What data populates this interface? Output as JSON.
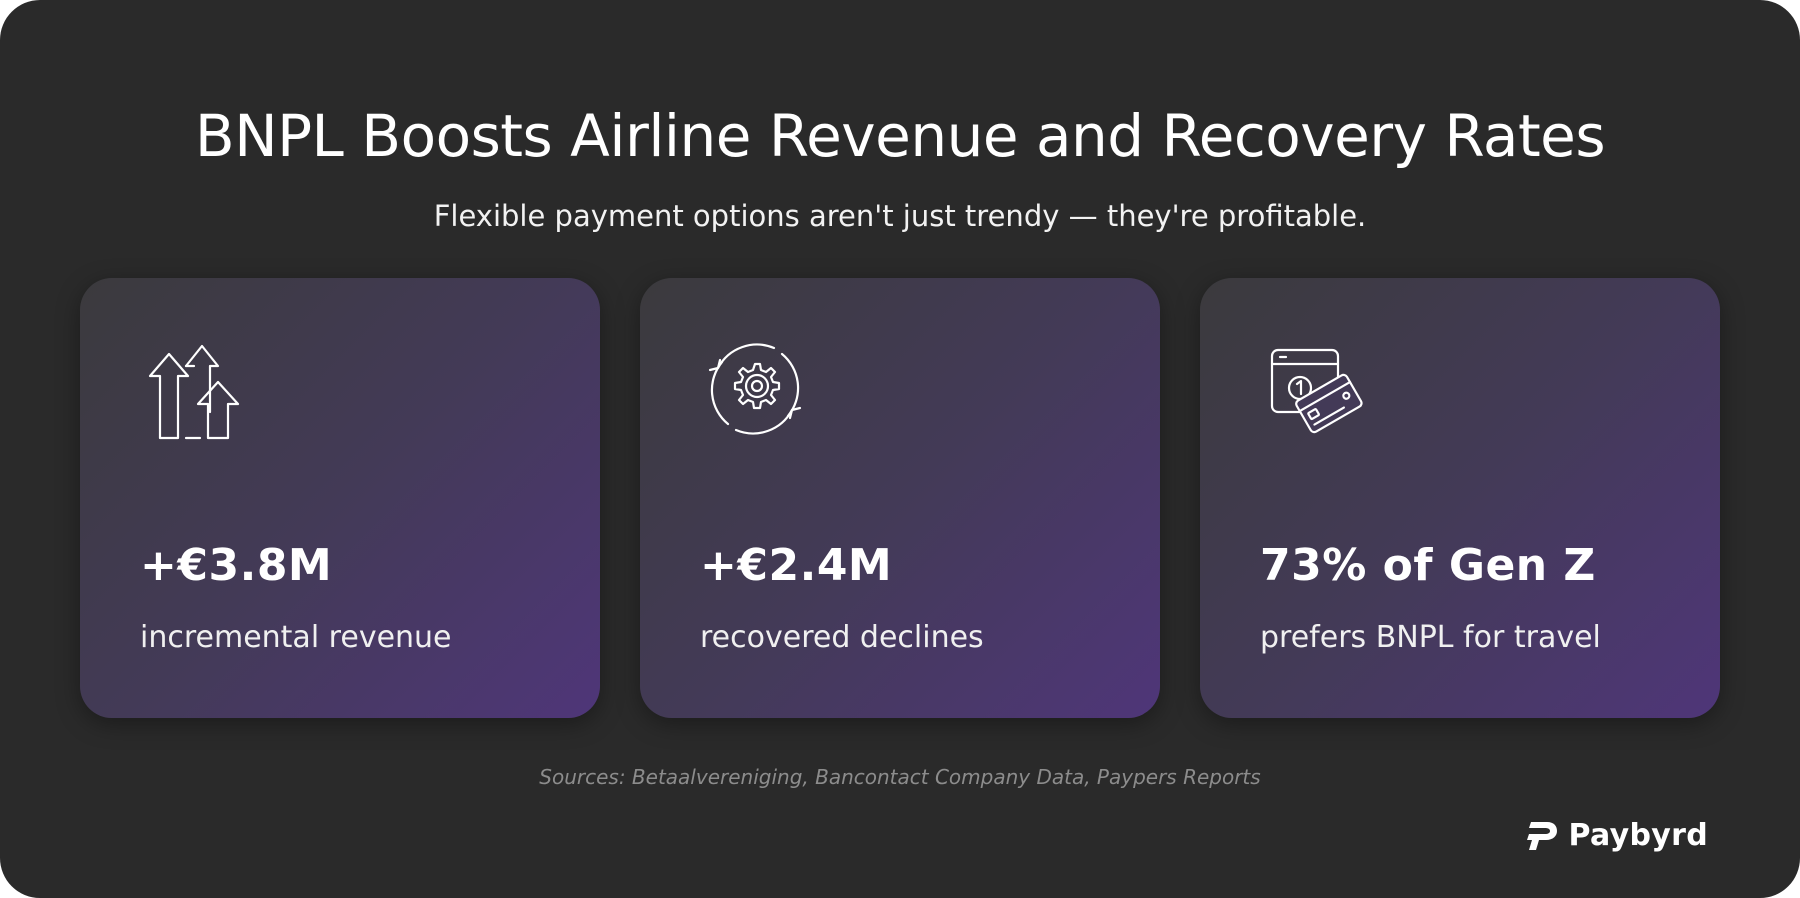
{
  "header": {
    "title": "BNPL Boosts Airline Revenue and Recovery Rates",
    "subtitle": "Flexible payment options aren't just trendy — they're profitable."
  },
  "cards": [
    {
      "icon": "growth-arrows-icon",
      "value": "+€3.8M",
      "label": "incremental revenue"
    },
    {
      "icon": "gear-cycle-icon",
      "value": "+€2.4M",
      "label": "recovered declines"
    },
    {
      "icon": "card-installment-icon",
      "value": "73% of Gen Z",
      "label": "prefers BNPL for travel"
    }
  ],
  "footer": {
    "sources": "Sources: Betaalvereniging, Bancontact Company Data, Paypers Reports",
    "brand": "Paybyrd"
  },
  "colors": {
    "background": "#2a2a2a",
    "card_gradient_start": "#3b3a3d",
    "card_gradient_end": "#4f3679",
    "text": "#ffffff",
    "muted": "#8c8c8c"
  }
}
